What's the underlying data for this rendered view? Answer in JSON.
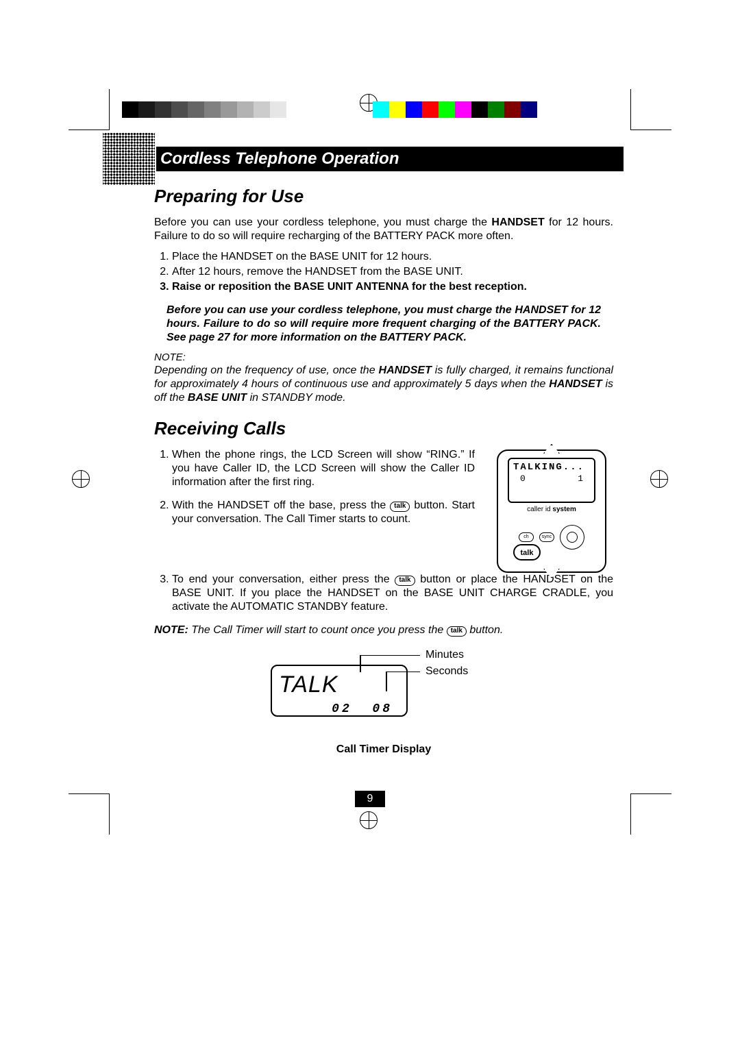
{
  "header": {
    "title": "Cordless Telephone Operation"
  },
  "section1": {
    "title": "Preparing for Use",
    "intro_parts": [
      "Before you can use your cordless telephone, you must charge the ",
      "HANDSET",
      " for 12 hours. Failure to do so will require recharging of the BATTERY PACK more often."
    ],
    "steps": [
      {
        "pre": "Place the ",
        "b1": "HANDSET",
        "mid": " on the ",
        "b2": "BASE UNIT",
        "post": " for 12 hours."
      },
      {
        "pre": "After 12 hours, remove the ",
        "b1": "HANDSET",
        "mid": " from the ",
        "b2": "BASE UNIT",
        "post": "."
      },
      {
        "bold_full": "Raise or reposition the BASE UNIT ANTENNA for the best reception."
      }
    ],
    "warn": "Before you can use your cordless telephone, you must charge the HANDSET for 12 hours. Failure to do so will require more frequent charging of the BATTERY PACK. See page 27 for more information on the BATTERY PACK.",
    "note_label": "NOTE:",
    "note_body_parts": [
      "Depending on the frequency of use, once the ",
      "HANDSET",
      " is fully charged, it remains functional for approximately 4 hours of continuous use and approximately 5 days when the ",
      "HANDSET",
      " is off the ",
      "BASE UNIT",
      " in STANDBY mode."
    ]
  },
  "section2": {
    "title": "Receiving Calls",
    "step1": "When the phone rings, the LCD Screen will show “RING.” If you have Caller ID, the LCD Screen will show the Caller ID information after the first ring.",
    "step2_pre": "With the ",
    "step2_b": "HANDSET",
    "step2_mid": " off the base, press the ",
    "step2_post": " button. Start your conversation. The Call Timer starts to count.",
    "step3_pre": "To end your conversation, either press the ",
    "step3_mid": " button or place the ",
    "step3_b1": "HANDSET",
    "step3_mid2": " on the ",
    "step3_b2": "BASE UNIT",
    "step3_mid3": ". If you place the ",
    "step3_b3": "HANDSET",
    "step3_mid4": " on the ",
    "step3_b4": "BASE UNIT",
    "step3_post": " CHARGE CRADLE, you activate the AUTOMATIC STANDBY feature.",
    "note_lbl": "NOTE:",
    "note_text_pre": " The Call Timer will start to count once you press the ",
    "note_text_post": " button.",
    "talk_pill_text": "talk"
  },
  "handset": {
    "screen_line1": "TALKING...",
    "screen_num_left": "0",
    "screen_num_right": "1",
    "cid_text_pre": "caller id ",
    "cid_text_bold": "system",
    "btn_ch": "ch",
    "btn_sync": "sync",
    "btn_talk": "talk"
  },
  "ctd": {
    "big": "TALK",
    "minutes": "02",
    "seconds": "08",
    "label_min": "Minutes",
    "label_sec": "Seconds",
    "caption": "Call Timer Display"
  },
  "page_number": "9",
  "colorbars": {
    "left": [
      "#000000",
      "#1a1a1a",
      "#333333",
      "#4d4d4d",
      "#666666",
      "#808080",
      "#999999",
      "#b3b3b3",
      "#cccccc",
      "#e6e6e6",
      "#ffffff"
    ],
    "right": [
      "#00ffff",
      "#ffff00",
      "#0000ff",
      "#ff0000",
      "#00ff00",
      "#ff00ff",
      "#000000",
      "#008000",
      "#800000",
      "#000080",
      "#ffffff"
    ]
  }
}
